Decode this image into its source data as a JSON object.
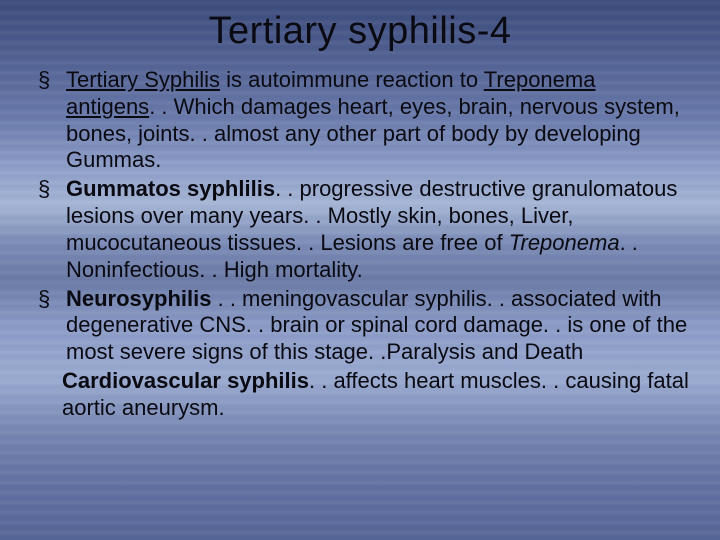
{
  "colors": {
    "title_color": "#0a0a12",
    "body_color": "#0a0a12",
    "bg_gradient": [
      "#3a4a7a",
      "#4a5a8a",
      "#5a6a9a",
      "#6a7aaa",
      "#8a9ac5",
      "#a5b5d5",
      "#7a8ab5",
      "#6a7aa5",
      "#8a9ac5",
      "#9aaad0",
      "#7585b0",
      "#6070a0",
      "#556595"
    ]
  },
  "typography": {
    "title_fontsize": 38,
    "body_fontsize": 22,
    "font_family": "Arial"
  },
  "title": "Tertiary syphilis-4",
  "bullets": [
    {
      "runs": [
        {
          "t": " ",
          "styles": []
        },
        {
          "t": "Tertiary Syphilis",
          "styles": [
            "underline"
          ]
        },
        {
          "t": " is  autoimmune reaction to ",
          "styles": []
        },
        {
          "t": "Treponema antigens",
          "styles": [
            "underline"
          ]
        },
        {
          "t": ". . Which damages heart, eyes, brain, nervous system, bones, joints. . almost any other part of body by developing ",
          "styles": []
        },
        {
          "t": "Gummas",
          "styles": []
        },
        {
          "t": ".",
          "styles": []
        }
      ]
    },
    {
      "runs": [
        {
          "t": " ",
          "styles": []
        },
        {
          "t": "Gummatos syphlilis",
          "styles": [
            "bold"
          ]
        },
        {
          "t": ". . progressive destructive granulomatous lesions over many years. . Mostly skin, bones, Liver, mucocutaneous tissues. . Lesions are free of ",
          "styles": []
        },
        {
          "t": "Treponema",
          "styles": [
            "italic"
          ]
        },
        {
          "t": ". . Noninfectious. . High mortality.",
          "styles": []
        }
      ]
    },
    {
      "runs": [
        {
          "t": "  ",
          "styles": []
        },
        {
          "t": "Neurosyphilis",
          "styles": [
            "bold"
          ]
        },
        {
          "t": " . . meningovascular syphilis. . associated with degenerative CNS. . brain or spinal cord damage. . is one of the most severe signs of this stage. .Paralysis and Death",
          "styles": []
        }
      ]
    }
  ],
  "continuation": {
    "runs": [
      {
        "t": " ",
        "styles": []
      },
      {
        "t": "Cardiovascular syphilis",
        "styles": [
          "bold"
        ]
      },
      {
        "t": ". . affects heart muscles. . causing fatal aortic aneurysm.",
        "styles": []
      }
    ]
  }
}
